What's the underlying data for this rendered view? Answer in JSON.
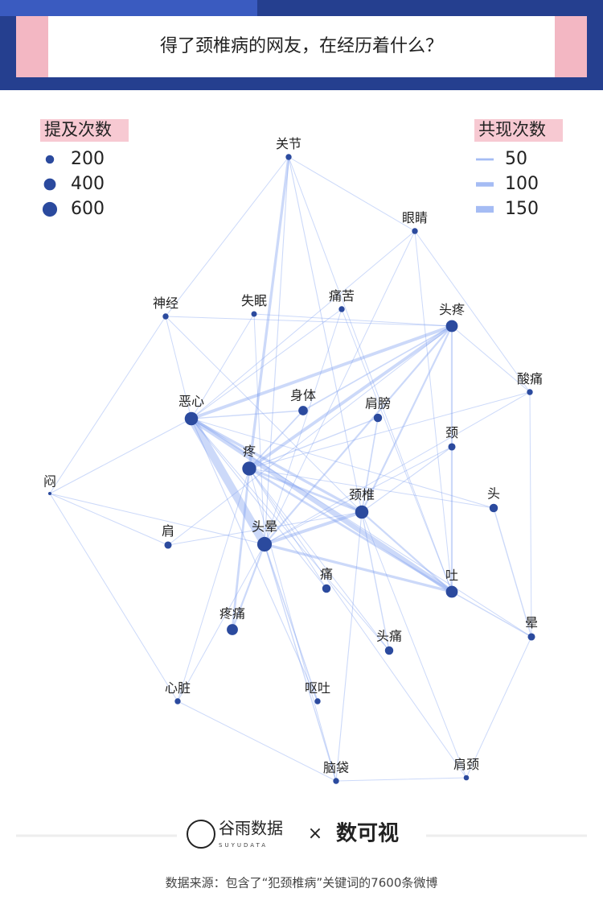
{
  "chart_data": {
    "type": "network",
    "title": "得了颈椎病的网友，在经历着什么？",
    "node_color": "#2b4a9e",
    "edge_color": "#7f9ff0",
    "size_legend": {
      "title": "提及次数",
      "values": [
        200,
        400,
        600
      ]
    },
    "width_legend": {
      "title": "共现次数",
      "values": [
        50,
        100,
        150
      ]
    },
    "nodes": [
      {
        "label": "关节",
        "value": 100
      },
      {
        "label": "眼睛",
        "value": 100
      },
      {
        "label": "神经",
        "value": 100
      },
      {
        "label": "失眠",
        "value": 90
      },
      {
        "label": "痛苦",
        "value": 100
      },
      {
        "label": "头疼",
        "value": 400
      },
      {
        "label": "酸痛",
        "value": 100
      },
      {
        "label": "恶心",
        "value": 500
      },
      {
        "label": "身体",
        "value": 250
      },
      {
        "label": "肩膀",
        "value": 200
      },
      {
        "label": "颈",
        "value": 150
      },
      {
        "label": "疼",
        "value": 550
      },
      {
        "label": "颈椎",
        "value": 500
      },
      {
        "label": "头",
        "value": 200
      },
      {
        "label": "闷",
        "value": 30
      },
      {
        "label": "肩",
        "value": 150
      },
      {
        "label": "头晕",
        "value": 600
      },
      {
        "label": "痛",
        "value": 200
      },
      {
        "label": "吐",
        "value": 400
      },
      {
        "label": "疼痛",
        "value": 350
      },
      {
        "label": "头痛",
        "value": 200
      },
      {
        "label": "晕",
        "value": 150
      },
      {
        "label": "心脏",
        "value": 100
      },
      {
        "label": "呕吐",
        "value": 100
      },
      {
        "label": "脑袋",
        "value": 100
      },
      {
        "label": "肩颈",
        "value": 80
      }
    ],
    "edges": [
      {
        "source": "恶心",
        "target": "头晕",
        "value": 180
      },
      {
        "source": "恶心",
        "target": "吐",
        "value": 110
      },
      {
        "source": "恶心",
        "target": "颈椎",
        "value": 60
      },
      {
        "source": "恶心",
        "target": "头疼",
        "value": 70
      },
      {
        "source": "疼",
        "target": "关节",
        "value": 60
      },
      {
        "source": "疼",
        "target": "头疼",
        "value": 70
      },
      {
        "source": "疼",
        "target": "颈椎",
        "value": 50
      },
      {
        "source": "疼",
        "target": "吐",
        "value": 50
      },
      {
        "source": "头晕",
        "target": "颈椎",
        "value": 70
      },
      {
        "source": "头晕",
        "target": "头疼",
        "value": 40
      },
      {
        "source": "头晕",
        "target": "吐",
        "value": 60
      },
      {
        "source": "头晕",
        "target": "疼痛",
        "value": 40
      },
      {
        "source": "疼痛",
        "target": "疼",
        "value": 50
      },
      {
        "source": "头晕",
        "target": "呕吐",
        "value": 30
      },
      {
        "source": "头晕",
        "target": "脑袋",
        "value": 25
      },
      {
        "source": "头疼",
        "target": "吐",
        "value": 40
      },
      {
        "source": "头疼",
        "target": "颈椎",
        "value": 40
      },
      {
        "source": "头疼",
        "target": "身体",
        "value": 30
      },
      {
        "source": "颈椎",
        "target": "吐",
        "value": 40
      },
      {
        "source": "颈椎",
        "target": "肩膀",
        "value": 30
      },
      {
        "source": "颈椎",
        "target": "头痛",
        "value": 25
      },
      {
        "source": "颈椎",
        "target": "脑袋",
        "value": 20
      },
      {
        "source": "头",
        "target": "晕",
        "value": 25
      },
      {
        "source": "吐",
        "target": "晕",
        "value": 25
      },
      {
        "source": "身体",
        "target": "疼",
        "value": 30
      },
      {
        "source": "身体",
        "target": "恶心",
        "value": 25
      },
      {
        "source": "肩膀",
        "target": "疼",
        "value": 25
      },
      {
        "source": "颈",
        "target": "颈椎",
        "value": 20
      },
      {
        "source": "关节",
        "target": "眼睛",
        "value": 10
      },
      {
        "source": "关节",
        "target": "神经",
        "value": 12
      },
      {
        "source": "眼睛",
        "target": "酸痛",
        "value": 8
      },
      {
        "source": "酸痛",
        "target": "晕",
        "value": 10
      },
      {
        "source": "晕",
        "target": "肩颈",
        "value": 8
      },
      {
        "source": "肩颈",
        "target": "脑袋",
        "value": 8
      },
      {
        "source": "脑袋",
        "target": "心脏",
        "value": 10
      },
      {
        "source": "心脏",
        "target": "闷",
        "value": 8
      },
      {
        "source": "闷",
        "target": "神经",
        "value": 8
      },
      {
        "source": "闷",
        "target": "恶心",
        "value": 10
      },
      {
        "source": "闷",
        "target": "头晕",
        "value": 10
      },
      {
        "source": "闷",
        "target": "肩",
        "value": 8
      },
      {
        "source": "关节",
        "target": "头晕",
        "value": 20
      },
      {
        "source": "关节",
        "target": "颈椎",
        "value": 20
      },
      {
        "source": "关节",
        "target": "吐",
        "value": 15
      },
      {
        "source": "眼睛",
        "target": "头晕",
        "value": 15
      },
      {
        "source": "眼睛",
        "target": "恶心",
        "value": 12
      },
      {
        "source": "神经",
        "target": "恶心",
        "value": 15
      },
      {
        "source": "神经",
        "target": "颈椎",
        "value": 15
      },
      {
        "source": "失眠",
        "target": "恶心",
        "value": 15
      },
      {
        "source": "失眠",
        "target": "头晕",
        "value": 15
      },
      {
        "source": "痛苦",
        "target": "头晕",
        "value": 15
      },
      {
        "source": "痛苦",
        "target": "恶心",
        "value": 12
      },
      {
        "source": "酸痛",
        "target": "头晕",
        "value": 15
      },
      {
        "source": "酸痛",
        "target": "疼",
        "value": 12
      },
      {
        "source": "头",
        "target": "恶心",
        "value": 15
      },
      {
        "source": "头",
        "target": "疼",
        "value": 15
      },
      {
        "source": "肩",
        "target": "颈椎",
        "value": 15
      },
      {
        "source": "肩",
        "target": "头疼",
        "value": 12
      },
      {
        "source": "痛",
        "target": "恶心",
        "value": 20
      },
      {
        "source": "痛",
        "target": "疼",
        "value": 15
      },
      {
        "source": "头痛",
        "target": "恶心",
        "value": 15
      },
      {
        "source": "头痛",
        "target": "疼",
        "value": 15
      },
      {
        "source": "心脏",
        "target": "头晕",
        "value": 15
      },
      {
        "source": "心脏",
        "target": "疼",
        "value": 12
      },
      {
        "source": "呕吐",
        "target": "恶心",
        "value": 20
      },
      {
        "source": "脑袋",
        "target": "疼",
        "value": 15
      },
      {
        "source": "肩颈",
        "target": "疼",
        "value": 12
      },
      {
        "source": "肩颈",
        "target": "颈椎",
        "value": 12
      },
      {
        "source": "晕",
        "target": "恶心",
        "value": 15
      },
      {
        "source": "颈",
        "target": "头晕",
        "value": 15
      },
      {
        "source": "头疼",
        "target": "酸痛",
        "value": 12
      },
      {
        "source": "头疼",
        "target": "失眠",
        "value": 12
      },
      {
        "source": "眼睛",
        "target": "吐",
        "value": 12
      },
      {
        "source": "神经",
        "target": "头疼",
        "value": 12
      },
      {
        "source": "痛苦",
        "target": "吐",
        "value": 12
      }
    ]
  },
  "footer": {
    "brand_a": "谷雨数据",
    "brand_a_sub": "SUYUDATA",
    "separator": "×",
    "brand_b": "数可视",
    "source": "数据来源：包含了“犯颈椎病”关键词的7600条微博"
  }
}
